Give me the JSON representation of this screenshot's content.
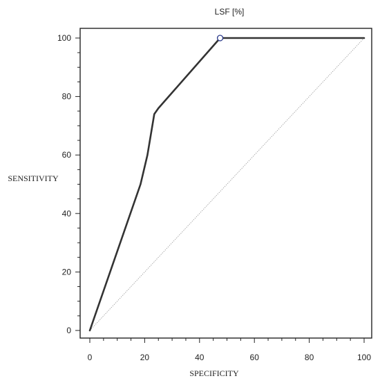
{
  "chart_data": {
    "type": "line",
    "title": "LSF [%]",
    "xlabel": "SPECIFICITY",
    "ylabel": "SENSITIVITY",
    "xlim": [
      0,
      100
    ],
    "ylim": [
      0,
      100
    ],
    "x_ticks": [
      0,
      20,
      40,
      60,
      80,
      100
    ],
    "y_ticks": [
      0,
      20,
      40,
      60,
      80,
      100
    ],
    "x_tick_labels": [
      "0",
      "20",
      "40",
      "60",
      "80",
      "100"
    ],
    "y_tick_labels": [
      "0",
      "20",
      "40",
      "60",
      "80",
      "100"
    ],
    "grid": false,
    "legend": "none",
    "series": [
      {
        "x": [
          0,
          18.5,
          21,
          23.5,
          25,
          47.5,
          100
        ],
        "y": [
          0,
          50,
          60,
          74,
          76,
          100,
          100
        ],
        "color": "#333333"
      }
    ],
    "reference_line": {
      "x": [
        0,
        100
      ],
      "y": [
        0,
        100
      ],
      "color": "#999999"
    },
    "marker": {
      "x": 47.5,
      "y": 100,
      "color": "#2b3a8a"
    },
    "colors": {
      "axis": "#222222",
      "curve": "#333333",
      "diagonal": "#999999",
      "marker_stroke": "#2b3a8a"
    }
  }
}
